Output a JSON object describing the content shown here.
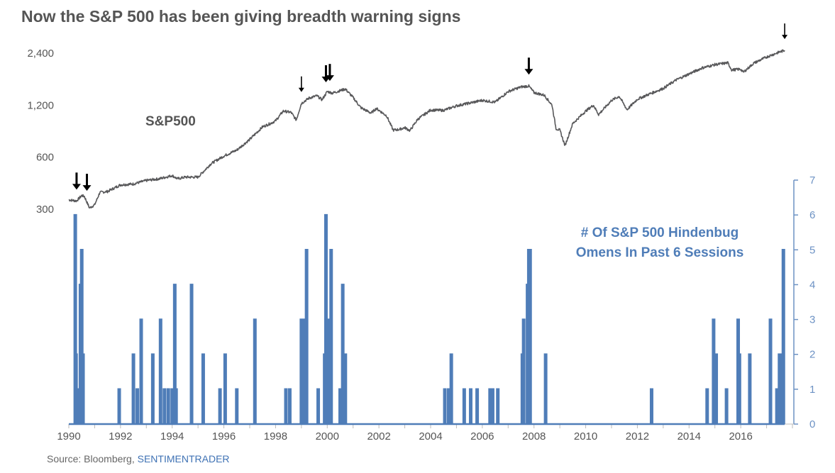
{
  "title": "Now the S&P 500 has been giving breadth warning signs",
  "source": {
    "prefix": "Source: Bloomberg, ",
    "brand": "SENTIMENTRADER"
  },
  "colors": {
    "price": "#58585a",
    "omens": "#4f7db8",
    "text": "#555555",
    "right_axis": "#6d92c4",
    "arrow": "#000000"
  },
  "chart_data": {
    "type": "line",
    "title": "Now the S&P 500 has been giving breadth warning signs",
    "x_range": [
      1990,
      2018
    ],
    "x_ticks": [
      "1990",
      "1992",
      "1994",
      "1996",
      "1998",
      "2000",
      "2002",
      "2004",
      "2006",
      "2008",
      "2010",
      "2012",
      "2014",
      "2016"
    ],
    "series": [
      {
        "name": "S&P500",
        "axis": "left",
        "scale": "log",
        "ylim": [
          240,
          3300
        ],
        "y_ticks": [
          300,
          600,
          1200,
          2400
        ],
        "y_tick_labels": [
          "300",
          "600",
          "1,200",
          "2,400"
        ],
        "points": [
          [
            1990.0,
            340
          ],
          [
            1990.3,
            335
          ],
          [
            1990.5,
            360
          ],
          [
            1990.6,
            356
          ],
          [
            1990.8,
            305
          ],
          [
            1991.0,
            318
          ],
          [
            1991.2,
            375
          ],
          [
            1991.5,
            380
          ],
          [
            1992.0,
            415
          ],
          [
            1992.5,
            420
          ],
          [
            1993.0,
            440
          ],
          [
            1993.5,
            450
          ],
          [
            1994.0,
            470
          ],
          [
            1994.2,
            450
          ],
          [
            1994.5,
            460
          ],
          [
            1995.0,
            460
          ],
          [
            1995.5,
            550
          ],
          [
            1996.0,
            610
          ],
          [
            1996.5,
            660
          ],
          [
            1997.0,
            760
          ],
          [
            1997.5,
            900
          ],
          [
            1997.8,
            940
          ],
          [
            1998.0,
            975
          ],
          [
            1998.3,
            1110
          ],
          [
            1998.6,
            1090
          ],
          [
            1998.8,
            985
          ],
          [
            1999.0,
            1230
          ],
          [
            1999.3,
            1320
          ],
          [
            1999.6,
            1360
          ],
          [
            1999.8,
            1290
          ],
          [
            2000.0,
            1440
          ],
          [
            2000.2,
            1410
          ],
          [
            2000.7,
            1490
          ],
          [
            2001.0,
            1330
          ],
          [
            2001.3,
            1160
          ],
          [
            2001.7,
            1080
          ],
          [
            2001.9,
            1150
          ],
          [
            2002.3,
            1040
          ],
          [
            2002.55,
            860
          ],
          [
            2002.8,
            870
          ],
          [
            2003.0,
            890
          ],
          [
            2003.2,
            855
          ],
          [
            2003.5,
            995
          ],
          [
            2004.0,
            1125
          ],
          [
            2004.5,
            1120
          ],
          [
            2005.0,
            1190
          ],
          [
            2006.0,
            1280
          ],
          [
            2006.5,
            1250
          ],
          [
            2007.0,
            1440
          ],
          [
            2007.5,
            1530
          ],
          [
            2007.8,
            1550
          ],
          [
            2008.0,
            1420
          ],
          [
            2008.4,
            1370
          ],
          [
            2008.7,
            1200
          ],
          [
            2008.85,
            880
          ],
          [
            2009.0,
            860
          ],
          [
            2009.2,
            700
          ],
          [
            2009.5,
            940
          ],
          [
            2010.0,
            1110
          ],
          [
            2010.3,
            1200
          ],
          [
            2010.5,
            1060
          ],
          [
            2011.0,
            1280
          ],
          [
            2011.3,
            1350
          ],
          [
            2011.6,
            1130
          ],
          [
            2012.0,
            1300
          ],
          [
            2012.5,
            1400
          ],
          [
            2013.0,
            1500
          ],
          [
            2013.5,
            1680
          ],
          [
            2014.0,
            1820
          ],
          [
            2014.5,
            1970
          ],
          [
            2015.0,
            2060
          ],
          [
            2015.5,
            2110
          ],
          [
            2015.65,
            1920
          ],
          [
            2016.0,
            1940
          ],
          [
            2016.1,
            1860
          ],
          [
            2016.5,
            2100
          ],
          [
            2017.0,
            2280
          ],
          [
            2017.5,
            2440
          ],
          [
            2017.7,
            2490
          ]
        ],
        "label": "S&P500"
      },
      {
        "name": "# Of S&P 500 Hindenbug Omens In Past 6 Sessions",
        "axis": "right",
        "ylim": [
          0,
          7
        ],
        "y_ticks": [
          0,
          1,
          2,
          3,
          4,
          5,
          6,
          7
        ],
        "spikes": [
          [
            1990.25,
            6
          ],
          [
            1990.28,
            2
          ],
          [
            1990.32,
            1
          ],
          [
            1990.45,
            4
          ],
          [
            1990.5,
            5
          ],
          [
            1990.55,
            2
          ],
          [
            1991.95,
            1
          ],
          [
            1992.5,
            2
          ],
          [
            1992.65,
            1
          ],
          [
            1992.8,
            3
          ],
          [
            1993.25,
            2
          ],
          [
            1993.55,
            3
          ],
          [
            1993.7,
            1
          ],
          [
            1993.85,
            1
          ],
          [
            1994.0,
            1
          ],
          [
            1994.1,
            4
          ],
          [
            1994.15,
            1
          ],
          [
            1994.75,
            4
          ],
          [
            1995.2,
            2
          ],
          [
            1995.85,
            1
          ],
          [
            1996.05,
            2
          ],
          [
            1996.5,
            1
          ],
          [
            1997.2,
            3
          ],
          [
            1998.4,
            1
          ],
          [
            1998.55,
            1
          ],
          [
            1999.0,
            3
          ],
          [
            1999.08,
            3
          ],
          [
            1999.2,
            5
          ],
          [
            1999.65,
            1
          ],
          [
            1999.9,
            2
          ],
          [
            1999.95,
            6
          ],
          [
            2000.05,
            3
          ],
          [
            2000.15,
            5
          ],
          [
            2000.5,
            1
          ],
          [
            2000.6,
            4
          ],
          [
            2000.7,
            2
          ],
          [
            2004.55,
            1
          ],
          [
            2004.7,
            1
          ],
          [
            2004.8,
            2
          ],
          [
            2005.3,
            1
          ],
          [
            2005.55,
            1
          ],
          [
            2005.8,
            1
          ],
          [
            2006.3,
            1
          ],
          [
            2006.4,
            1
          ],
          [
            2006.6,
            1
          ],
          [
            2007.55,
            2
          ],
          [
            2007.6,
            3
          ],
          [
            2007.75,
            4
          ],
          [
            2007.8,
            5
          ],
          [
            2007.85,
            5
          ],
          [
            2008.45,
            2
          ],
          [
            2012.55,
            1
          ],
          [
            2014.7,
            1
          ],
          [
            2014.95,
            3
          ],
          [
            2015.05,
            2
          ],
          [
            2015.45,
            1
          ],
          [
            2015.9,
            3
          ],
          [
            2015.95,
            2
          ],
          [
            2016.35,
            2
          ],
          [
            2017.15,
            3
          ],
          [
            2017.4,
            1
          ],
          [
            2017.5,
            2
          ],
          [
            2017.55,
            2
          ],
          [
            2017.65,
            5
          ]
        ],
        "label_lines": [
          "# Of S&P 500 Hindenbug",
          "Omens In Past 6 Sessions"
        ]
      }
    ],
    "arrows": [
      {
        "x": 1990.3,
        "size": "large"
      },
      {
        "x": 1990.7,
        "size": "large"
      },
      {
        "x": 1999.0,
        "size": "small"
      },
      {
        "x": 1999.95,
        "size": "large"
      },
      {
        "x": 2000.1,
        "size": "large"
      },
      {
        "x": 2007.8,
        "size": "large"
      },
      {
        "x": 2017.7,
        "size": "small"
      }
    ]
  }
}
